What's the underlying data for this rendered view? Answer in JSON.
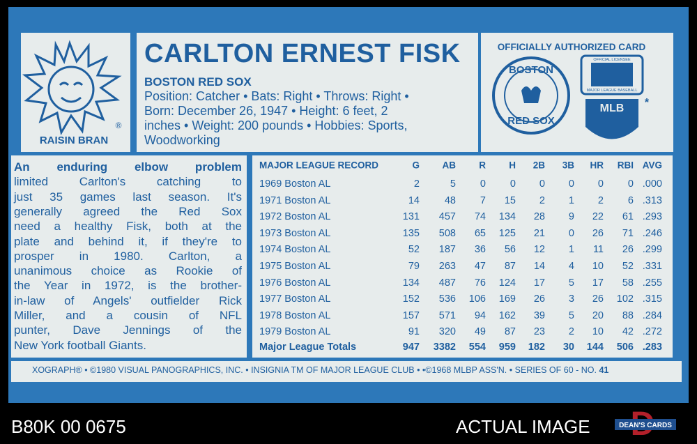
{
  "logo": {
    "brand": "RAISIN BRAN",
    "registered": "®"
  },
  "header": {
    "name": "CARLTON ERNEST FISK",
    "team": "BOSTON RED SOX",
    "bio_lines": [
      "Position: Catcher • Bats: Right • Throws: Right •",
      "Born: December 26, 1947 • Height: 6 feet, 2",
      "inches • Weight: 200 pounds • Hobbies: Sports,",
      "Woodworking"
    ]
  },
  "badges": {
    "caption": "OFFICIALLY AUTHORIZED CARD",
    "team_logo_top": "BOSTON",
    "team_logo_bottom": "RED SOX",
    "licensee_top": "OFFICIAL LICENSEE",
    "licensee_bottom": "MAJOR LEAGUE BASEBALL",
    "mlb": "MLB",
    "asterisk": "*"
  },
  "story": {
    "lines": [
      "An enduring elbow problem",
      "limited Carlton's catching to",
      "just 35 games last season. It's",
      "generally agreed the Red Sox",
      "need a healthy Fisk, both at the",
      "plate and behind it, if they're to",
      "prosper in 1980. Carlton, a",
      "unanimous choice as Rookie of",
      "the Year in 1972, is the brother-",
      "in-law of Angels' outfielder Rick",
      "Miller, and a cousin of NFL",
      "punter, Dave Jennings of the",
      "New York football Giants."
    ]
  },
  "table": {
    "columns": [
      "MAJOR LEAGUE RECORD",
      "G",
      "AB",
      "R",
      "H",
      "2B",
      "3B",
      "HR",
      "RBI",
      "AVG"
    ],
    "rows": [
      [
        "1969 Boston AL",
        "2",
        "5",
        "0",
        "0",
        "0",
        "0",
        "0",
        "0",
        ".000"
      ],
      [
        "1971 Boston AL",
        "14",
        "48",
        "7",
        "15",
        "2",
        "1",
        "2",
        "6",
        ".313"
      ],
      [
        "1972 Boston AL",
        "131",
        "457",
        "74",
        "134",
        "28",
        "9",
        "22",
        "61",
        ".293"
      ],
      [
        "1973 Boston AL",
        "135",
        "508",
        "65",
        "125",
        "21",
        "0",
        "26",
        "71",
        ".246"
      ],
      [
        "1974 Boston AL",
        "52",
        "187",
        "36",
        "56",
        "12",
        "1",
        "11",
        "26",
        ".299"
      ],
      [
        "1975 Boston AL",
        "79",
        "263",
        "47",
        "87",
        "14",
        "4",
        "10",
        "52",
        ".331"
      ],
      [
        "1976 Boston AL",
        "134",
        "487",
        "76",
        "124",
        "17",
        "5",
        "17",
        "58",
        ".255"
      ],
      [
        "1977 Boston AL",
        "152",
        "536",
        "106",
        "169",
        "26",
        "3",
        "26",
        "102",
        ".315"
      ],
      [
        "1978 Boston AL",
        "157",
        "571",
        "94",
        "162",
        "39",
        "5",
        "20",
        "88",
        ".284"
      ],
      [
        "1979 Boston AL",
        "91",
        "320",
        "49",
        "87",
        "23",
        "2",
        "10",
        "42",
        ".272"
      ]
    ],
    "totals": [
      "Major League Totals",
      "947",
      "3382",
      "554",
      "959",
      "182",
      "30",
      "144",
      "506",
      ".283"
    ]
  },
  "footer": {
    "text": "XOGRAPH® • ©1980 VISUAL PANOGRAPHICS, INC. • INSIGNIA TM OF MAJOR LEAGUE CLUB • •©1968 MLBP ASS'N. • SERIES OF 60 - NO.",
    "number": "41"
  },
  "overlay": {
    "cert": "B80K 00 0675",
    "caption": "ACTUAL IMAGE",
    "dealer": "DEAN'S CARDS"
  }
}
